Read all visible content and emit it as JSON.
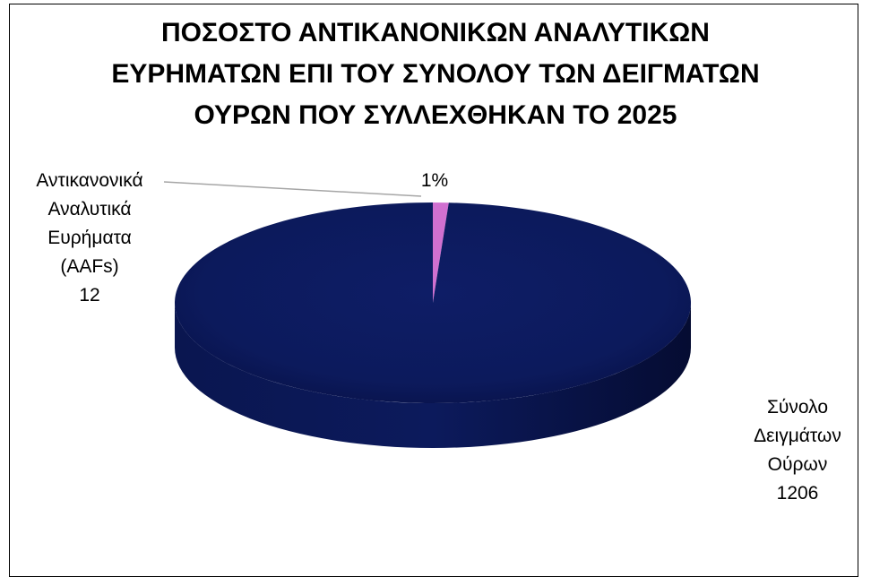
{
  "chart_data": {
    "type": "pie",
    "title_lines": [
      "ΠΟΣΟΣΤΟ ΑΝΤΙΚΑΝΟΝΙΚΩΝ ΑΝΑΛΥΤΙΚΩΝ",
      "ΕΥΡΗΜΑΤΩΝ ΕΠΙ ΤΟΥ ΣΥΝΟΛΟΥ ΤΩΝ ΔΕΙΓΜΑΤΩΝ",
      "ΟΥΡΩΝ ΠΟΥ ΣΥΛΛΕΧΘΗΚΑΝ ΤΟ 2025"
    ],
    "slices": [
      {
        "label_lines": [
          "Αντικανονικά",
          "Αναλυτικά",
          "Ευρήματα",
          "(AAFs)"
        ],
        "value": 12,
        "value_label": "12",
        "percent_label": "1%",
        "color": "#d070d0"
      },
      {
        "label_lines": [
          "Σύνολο",
          "Δειγμάτων",
          "Ούρων"
        ],
        "value": 1206,
        "value_label": "1206",
        "color": "#0c1a5c"
      }
    ],
    "style": "3d-pie"
  }
}
